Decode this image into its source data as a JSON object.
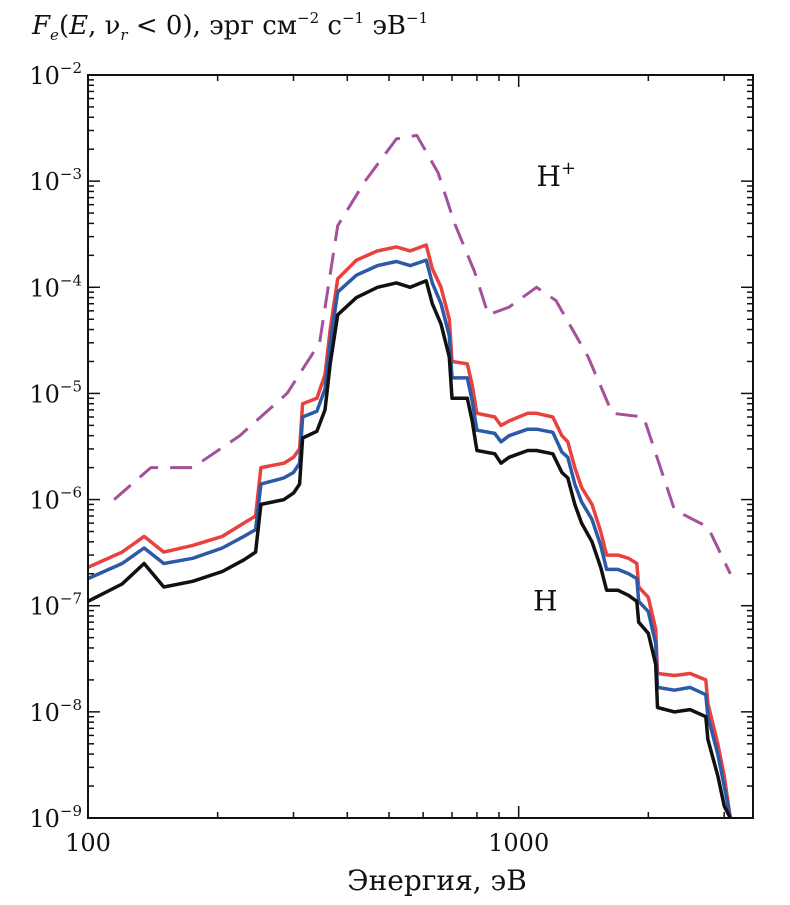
{
  "chart_data": {
    "type": "line",
    "title": "",
    "ylabel": "Fe(E, νr < 0), эрг см⁻² с⁻¹ эВ⁻¹",
    "ylabel_parts": {
      "F": "F",
      "sub_e": "e",
      "open": "(",
      "E": "E",
      "comma_nu": ", ν",
      "sub_r": "r",
      "rest": " < 0), эрг см",
      "exp1": "−2",
      "c": " с",
      "exp2": "−1",
      "eV": " эВ",
      "exp3": "−1"
    },
    "xlabel": "Энергия, эВ",
    "xscale": "log",
    "yscale": "log",
    "xlim": [
      100,
      3500
    ],
    "ylim": [
      1e-09,
      0.01
    ],
    "x_ticks": [
      {
        "value": 100,
        "label": "100"
      },
      {
        "value": 1000,
        "label": "1000"
      }
    ],
    "y_ticks": [
      {
        "value": 1e-09,
        "base": "10",
        "exp": "−9"
      },
      {
        "value": 1e-08,
        "base": "10",
        "exp": "−8"
      },
      {
        "value": 1e-07,
        "base": "10",
        "exp": "−7"
      },
      {
        "value": 1e-06,
        "base": "10",
        "exp": "−6"
      },
      {
        "value": 1e-05,
        "base": "10",
        "exp": "−5"
      },
      {
        "value": 0.0001,
        "base": "10",
        "exp": "−4"
      },
      {
        "value": 0.001,
        "base": "10",
        "exp": "−3"
      },
      {
        "value": 0.01,
        "base": "10",
        "exp": "−2"
      }
    ],
    "annotations": [
      {
        "text": "H",
        "sup": "+",
        "x": 1100,
        "y": 0.0009
      },
      {
        "text": "H",
        "sup": "",
        "x": 1080,
        "y": 9e-08
      }
    ],
    "series": [
      {
        "color": "#a4509b",
        "style": "dashed",
        "x": [
          115,
          140,
          175,
          225,
          290,
          345,
          380,
          440,
          520,
          580,
          650,
          710,
          790,
          850,
          950,
          1100,
          1220,
          1450,
          1650,
          1950,
          2300,
          2750,
          3100
        ],
        "y": [
          1e-06,
          2e-06,
          2e-06,
          4e-06,
          1e-05,
          3e-05,
          0.00038,
          0.001,
          0.0025,
          0.0027,
          0.0012,
          0.0004,
          0.00014,
          5.5e-05,
          6.5e-05,
          0.0001,
          7.5e-05,
          2.2e-05,
          6.5e-06,
          6e-06,
          8e-07,
          5.5e-07,
          2e-07
        ]
      },
      {
        "color": "#e8413e",
        "style": "solid",
        "x": [
          100,
          120,
          135,
          150,
          175,
          205,
          230,
          245,
          252,
          285,
          300,
          310,
          315,
          340,
          355,
          365,
          380,
          420,
          470,
          520,
          560,
          610,
          630,
          660,
          690,
          700,
          760,
          780,
          800,
          880,
          910,
          950,
          1000,
          1050,
          1100,
          1200,
          1260,
          1300,
          1350,
          1400,
          1480,
          1550,
          1600,
          1700,
          1800,
          1880,
          1900,
          2000,
          2080,
          2100,
          2300,
          2500,
          2720,
          2750,
          2900,
          3000,
          3100
        ],
        "y": [
          2.3e-07,
          3.2e-07,
          4.5e-07,
          3.2e-07,
          3.7e-07,
          4.5e-07,
          6e-07,
          7e-07,
          2e-06,
          2.2e-06,
          2.5e-06,
          3e-06,
          8e-06,
          9e-06,
          1.5e-05,
          4e-05,
          0.00012,
          0.00018,
          0.00022,
          0.00024,
          0.00022,
          0.00025,
          0.00015,
          0.0001,
          5e-05,
          2e-05,
          1.9e-05,
          1.2e-05,
          6.5e-06,
          6e-06,
          5e-06,
          5.5e-06,
          6e-06,
          6.5e-06,
          6.5e-06,
          6e-06,
          4e-06,
          3.5e-06,
          2e-06,
          1.3e-06,
          9e-07,
          5e-07,
          3e-07,
          3e-07,
          2.8e-07,
          2.5e-07,
          1.5e-07,
          1.2e-07,
          6e-08,
          2.3e-08,
          2.2e-08,
          2.3e-08,
          2e-08,
          1.2e-08,
          5e-09,
          2.5e-09,
          1e-09
        ]
      },
      {
        "color": "#2d5aa6",
        "style": "solid",
        "x": [
          100,
          120,
          135,
          150,
          175,
          205,
          230,
          245,
          252,
          285,
          300,
          310,
          315,
          340,
          355,
          365,
          380,
          420,
          470,
          520,
          560,
          610,
          630,
          660,
          690,
          700,
          760,
          780,
          800,
          880,
          910,
          950,
          1000,
          1050,
          1100,
          1200,
          1260,
          1300,
          1350,
          1400,
          1480,
          1550,
          1600,
          1700,
          1800,
          1880,
          1900,
          2000,
          2080,
          2100,
          2300,
          2500,
          2720,
          2750,
          2900,
          3000,
          3100
        ],
        "y": [
          1.8e-07,
          2.5e-07,
          3.5e-07,
          2.5e-07,
          2.8e-07,
          3.5e-07,
          4.5e-07,
          5.2e-07,
          1.4e-06,
          1.6e-06,
          1.8e-06,
          2.2e-06,
          6e-06,
          6.8e-06,
          1.1e-05,
          3e-05,
          9e-05,
          0.00013,
          0.00016,
          0.000175,
          0.00016,
          0.00018,
          0.00011,
          7e-05,
          3.5e-05,
          1.4e-05,
          1.4e-05,
          8.5e-06,
          4.5e-06,
          4.2e-06,
          3.5e-06,
          4e-06,
          4.3e-06,
          4.6e-06,
          4.6e-06,
          4.3e-06,
          2.8e-06,
          2.5e-06,
          1.4e-06,
          9.5e-07,
          6.5e-07,
          3.7e-07,
          2.2e-07,
          2.2e-07,
          2e-07,
          1.8e-07,
          1.1e-07,
          8.8e-08,
          4.4e-08,
          1.7e-08,
          1.6e-08,
          1.7e-08,
          1.45e-08,
          9e-09,
          4e-09,
          2e-09,
          9e-10
        ]
      },
      {
        "color": "#111111",
        "style": "solid",
        "x": [
          100,
          120,
          135,
          150,
          175,
          205,
          230,
          245,
          252,
          285,
          300,
          310,
          315,
          340,
          355,
          365,
          380,
          420,
          470,
          520,
          560,
          610,
          630,
          660,
          690,
          700,
          760,
          780,
          800,
          880,
          910,
          950,
          1000,
          1050,
          1100,
          1200,
          1260,
          1300,
          1350,
          1400,
          1480,
          1550,
          1600,
          1700,
          1800,
          1880,
          1900,
          2000,
          2080,
          2100,
          2300,
          2500,
          2720,
          2750,
          2900,
          3000,
          3100
        ],
        "y": [
          1.1e-07,
          1.6e-07,
          2.5e-07,
          1.5e-07,
          1.7e-07,
          2.1e-07,
          2.7e-07,
          3.2e-07,
          9e-07,
          1e-06,
          1.15e-06,
          1.4e-06,
          3.8e-06,
          4.4e-06,
          7e-06,
          1.9e-05,
          5.5e-05,
          8e-05,
          0.0001,
          0.00011,
          0.0001,
          0.000115,
          7e-05,
          4.5e-05,
          2.2e-05,
          9e-06,
          9e-06,
          5.5e-06,
          2.9e-06,
          2.7e-06,
          2.2e-06,
          2.5e-06,
          2.7e-06,
          2.9e-06,
          2.9e-06,
          2.7e-06,
          1.8e-06,
          1.6e-06,
          9e-07,
          6e-07,
          4e-07,
          2.3e-07,
          1.4e-07,
          1.4e-07,
          1.25e-07,
          1.1e-07,
          7e-08,
          5.5e-08,
          2.8e-08,
          1.1e-08,
          1e-08,
          1.05e-08,
          9e-09,
          5.5e-09,
          2.5e-09,
          1.3e-09,
          6e-10
        ]
      }
    ]
  }
}
